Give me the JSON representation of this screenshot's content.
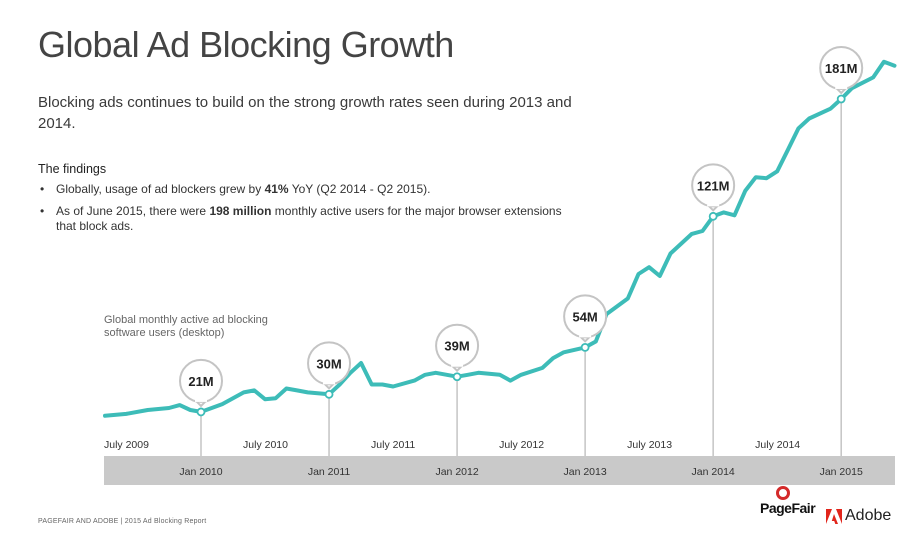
{
  "header": {
    "title": "Global Ad Blocking Growth",
    "subtitle": "Blocking ads continues to build on the strong growth rates seen during 2013 and 2014."
  },
  "findings": {
    "heading": "The findings",
    "items": [
      {
        "pre": "Globally, usage of ad blockers grew by ",
        "bold": "41%",
        "post": " YoY (Q2 2014 - Q2 2015)."
      },
      {
        "pre": "As of June 2015, there were ",
        "bold": "198 million",
        "post": " monthly active users for the major browser extensions that block ads."
      }
    ]
  },
  "footer": {
    "text": "PAGEFAIR AND ADOBE  |  2015 Ad Blocking Report",
    "logo_pagefair": "PageFair",
    "logo_adobe": "Adobe"
  },
  "chart_data": {
    "type": "line",
    "title": "",
    "series_label": "Global monthly active ad blocking software users (desktop)",
    "unit": "M",
    "ylim": [
      0,
      210
    ],
    "xlim": [
      "2009-04",
      "2015-06"
    ],
    "grid": false,
    "line_color": "#3dbcb8",
    "band_color": "#c9c9c9",
    "x_ticks_top": [
      "July 2009",
      "July 2010",
      "July 2011",
      "July 2012",
      "July 2013",
      "July 2014"
    ],
    "x_ticks_band": [
      "Jan 2010",
      "Jan 2011",
      "Jan 2012",
      "Jan 2013",
      "Jan 2014",
      "Jan 2015"
    ],
    "callouts": [
      {
        "date": "2010-01",
        "value": 21,
        "label": "21M"
      },
      {
        "date": "2011-01",
        "value": 30,
        "label": "30M"
      },
      {
        "date": "2012-01",
        "value": 39,
        "label": "39M"
      },
      {
        "date": "2013-01",
        "value": 54,
        "label": "54M"
      },
      {
        "date": "2014-01",
        "value": 121,
        "label": "121M"
      },
      {
        "date": "2015-01",
        "value": 181,
        "label": "181M"
      }
    ],
    "points": [
      [
        "2009-04",
        19
      ],
      [
        "2009-06",
        20
      ],
      [
        "2009-08",
        22
      ],
      [
        "2009-10",
        23
      ],
      [
        "2009-11",
        24.5
      ],
      [
        "2009-12",
        22
      ],
      [
        "2010-01",
        21
      ],
      [
        "2010-02",
        23
      ],
      [
        "2010-03",
        25
      ],
      [
        "2010-05",
        31
      ],
      [
        "2010-06",
        32
      ],
      [
        "2010-07",
        27.5
      ],
      [
        "2010-08",
        28
      ],
      [
        "2010-09",
        33
      ],
      [
        "2010-10",
        32
      ],
      [
        "2010-11",
        31
      ],
      [
        "2011-01",
        30
      ],
      [
        "2011-02",
        35
      ],
      [
        "2011-03",
        41
      ],
      [
        "2011-04",
        46
      ],
      [
        "2011-05",
        35
      ],
      [
        "2011-06",
        35
      ],
      [
        "2011-07",
        34
      ],
      [
        "2011-09",
        37
      ],
      [
        "2011-10",
        40
      ],
      [
        "2011-11",
        41
      ],
      [
        "2012-01",
        39
      ],
      [
        "2012-02",
        40
      ],
      [
        "2012-03",
        41
      ],
      [
        "2012-05",
        40
      ],
      [
        "2012-06",
        37
      ],
      [
        "2012-07",
        40
      ],
      [
        "2012-09",
        43.5
      ],
      [
        "2012-10",
        48.5
      ],
      [
        "2012-11",
        51.5
      ],
      [
        "2013-01",
        54
      ],
      [
        "2013-02",
        57
      ],
      [
        "2013-03",
        71
      ],
      [
        "2013-05",
        79
      ],
      [
        "2013-06",
        91.5
      ],
      [
        "2013-07",
        95
      ],
      [
        "2013-08",
        90.5
      ],
      [
        "2013-09",
        102
      ],
      [
        "2013-11",
        112
      ],
      [
        "2013-12",
        113.5
      ],
      [
        "2014-01",
        121
      ],
      [
        "2014-02",
        123
      ],
      [
        "2014-03",
        121.5
      ],
      [
        "2014-04",
        134
      ],
      [
        "2014-05",
        141
      ],
      [
        "2014-06",
        140.5
      ],
      [
        "2014-07",
        144
      ],
      [
        "2014-08",
        155
      ],
      [
        "2014-09",
        166
      ],
      [
        "2014-10",
        171
      ],
      [
        "2014-12",
        176
      ],
      [
        "2015-01",
        181
      ],
      [
        "2015-02",
        186.5
      ],
      [
        "2015-04",
        192
      ],
      [
        "2015-05",
        200
      ],
      [
        "2015-06",
        198
      ]
    ]
  }
}
